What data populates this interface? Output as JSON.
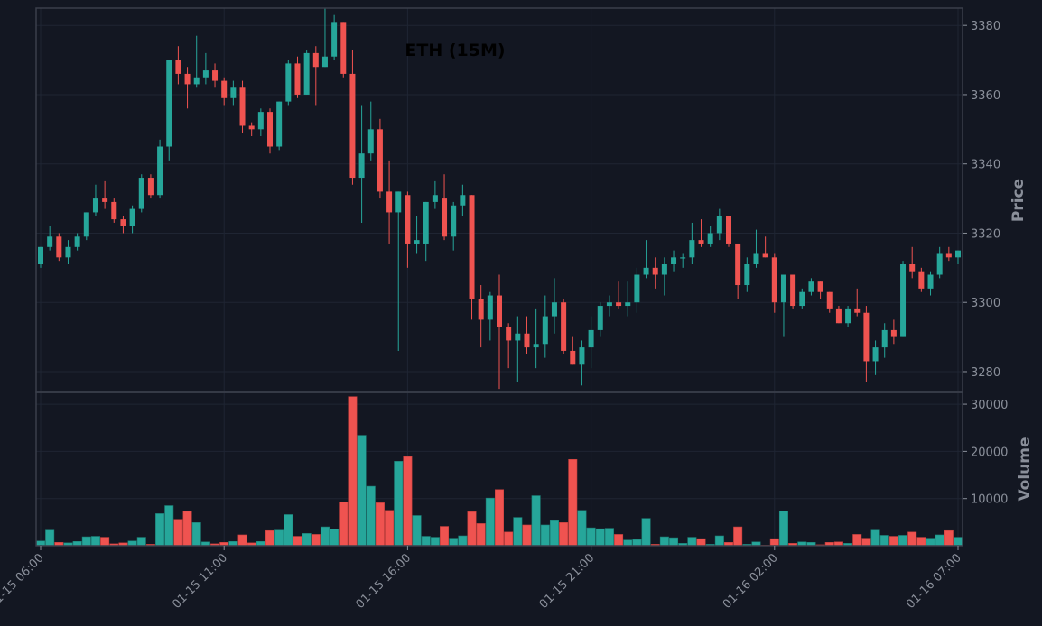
{
  "chart_data": {
    "type": "candlestick",
    "title": "ETH (15M)",
    "price_axis": {
      "label": "Price",
      "ticks": [
        3280,
        3300,
        3320,
        3340,
        3360,
        3380
      ],
      "range": [
        3274,
        3385
      ]
    },
    "volume_axis": {
      "label": "Volume",
      "ticks": [
        10000,
        20000,
        30000
      ],
      "tick_labels": [
        "10000",
        "20000",
        "30000"
      ],
      "range": [
        0,
        32500
      ]
    },
    "x_axis": {
      "ticks": [
        0,
        20,
        40,
        60,
        80,
        100
      ],
      "tick_labels": [
        "01-15 06:00",
        "01-15 11:00",
        "01-15 16:00",
        "01-15 21:00",
        "01-16 02:00",
        "01-16 07:00"
      ]
    },
    "grid": true,
    "colors": {
      "background": "#131722",
      "up": "#26a69a",
      "down": "#ef5350",
      "grid": "#1f2533",
      "border": "#3a3f4b"
    },
    "candles": [
      [
        3311,
        3316,
        3310,
        3316
      ],
      [
        3316,
        3322,
        3315,
        3319
      ],
      [
        3319,
        3320,
        3312,
        3313
      ],
      [
        3313,
        3318,
        3311,
        3316
      ],
      [
        3316,
        3320,
        3315,
        3319
      ],
      [
        3319,
        3326,
        3318,
        3326
      ],
      [
        3326,
        3334,
        3325,
        3330
      ],
      [
        3330,
        3335,
        3327,
        3329
      ],
      [
        3329,
        3330,
        3323,
        3324
      ],
      [
        3324,
        3325,
        3320,
        3322
      ],
      [
        3322,
        3328,
        3320,
        3327
      ],
      [
        3327,
        3337,
        3326,
        3336
      ],
      [
        3336,
        3337,
        3330,
        3331
      ],
      [
        3331,
        3347,
        3330,
        3345
      ],
      [
        3345,
        3370,
        3341,
        3370
      ],
      [
        3370,
        3374,
        3363,
        3366
      ],
      [
        3366,
        3368,
        3356,
        3363
      ],
      [
        3363,
        3377,
        3362,
        3365
      ],
      [
        3365,
        3372,
        3363,
        3367
      ],
      [
        3367,
        3369,
        3362,
        3364
      ],
      [
        3364,
        3365,
        3357,
        3359
      ],
      [
        3359,
        3364,
        3357,
        3362
      ],
      [
        3362,
        3364,
        3349,
        3351
      ],
      [
        3351,
        3352,
        3348,
        3350
      ],
      [
        3350,
        3356,
        3348,
        3355
      ],
      [
        3355,
        3356,
        3343,
        3345
      ],
      [
        3345,
        3358,
        3344,
        3358
      ],
      [
        3358,
        3370,
        3357,
        3369
      ],
      [
        3369,
        3371,
        3359,
        3360
      ],
      [
        3360,
        3373,
        3360,
        3372
      ],
      [
        3372,
        3374,
        3357,
        3368
      ],
      [
        3368,
        3385,
        3368,
        3371
      ],
      [
        3371,
        3383,
        3370,
        3381
      ],
      [
        3381,
        3381,
        3365,
        3366
      ],
      [
        3366,
        3373,
        3334,
        3336
      ],
      [
        3336,
        3357,
        3323,
        3343
      ],
      [
        3343,
        3358,
        3341,
        3350
      ],
      [
        3350,
        3353,
        3330,
        3332
      ],
      [
        3332,
        3341,
        3317,
        3326
      ],
      [
        3326,
        3332,
        3286,
        3332
      ],
      [
        3331,
        3332,
        3310,
        3317
      ],
      [
        3317,
        3325,
        3314,
        3318
      ],
      [
        3317,
        3329,
        3312,
        3329
      ],
      [
        3329,
        3335,
        3327,
        3331
      ],
      [
        3330,
        3337,
        3318,
        3319
      ],
      [
        3319,
        3329,
        3315,
        3328
      ],
      [
        3328,
        3334,
        3325,
        3331
      ],
      [
        3331,
        3331,
        3295,
        3301
      ],
      [
        3301,
        3305,
        3287,
        3295
      ],
      [
        3295,
        3303,
        3289,
        3302
      ],
      [
        3302,
        3308,
        3275,
        3293
      ],
      [
        3293,
        3294,
        3281,
        3289
      ],
      [
        3289,
        3296,
        3277,
        3291
      ],
      [
        3291,
        3296,
        3285,
        3287
      ],
      [
        3287,
        3298,
        3281,
        3288
      ],
      [
        3288,
        3302,
        3284,
        3296
      ],
      [
        3296,
        3307,
        3291,
        3300
      ],
      [
        3300,
        3301,
        3285,
        3286
      ],
      [
        3286,
        3290,
        3282,
        3282
      ],
      [
        3282,
        3289,
        3276,
        3287
      ],
      [
        3287,
        3296,
        3281,
        3292
      ],
      [
        3292,
        3300,
        3290,
        3299
      ],
      [
        3299,
        3302,
        3296,
        3300
      ],
      [
        3300,
        3306,
        3298,
        3299
      ],
      [
        3299,
        3306,
        3296,
        3300
      ],
      [
        3300,
        3310,
        3297,
        3308
      ],
      [
        3308,
        3318,
        3307,
        3310
      ],
      [
        3310,
        3313,
        3304,
        3308
      ],
      [
        3308,
        3313,
        3302,
        3311
      ],
      [
        3311,
        3315,
        3309,
        3313
      ],
      [
        3313,
        3314,
        3310,
        3313
      ],
      [
        3313,
        3323,
        3311,
        3318
      ],
      [
        3318,
        3324,
        3316,
        3317
      ],
      [
        3317,
        3322,
        3316,
        3320
      ],
      [
        3320,
        3327,
        3318,
        3325
      ],
      [
        3325,
        3325,
        3316,
        3317
      ],
      [
        3317,
        3317,
        3301,
        3305
      ],
      [
        3305,
        3313,
        3303,
        3311
      ],
      [
        3311,
        3321,
        3310,
        3314
      ],
      [
        3314,
        3319,
        3313,
        3313
      ],
      [
        3313,
        3314,
        3297,
        3300
      ],
      [
        3300,
        3308,
        3290,
        3308
      ],
      [
        3308,
        3308,
        3298,
        3299
      ],
      [
        3299,
        3304,
        3298,
        3303
      ],
      [
        3303,
        3307,
        3302,
        3306
      ],
      [
        3306,
        3306,
        3301,
        3303
      ],
      [
        3303,
        3303,
        3297,
        3298
      ],
      [
        3298,
        3299,
        3294,
        3294
      ],
      [
        3294,
        3299,
        3293,
        3298
      ],
      [
        3298,
        3304,
        3296,
        3297
      ],
      [
        3297,
        3299,
        3277,
        3283
      ],
      [
        3283,
        3289,
        3279,
        3287
      ],
      [
        3287,
        3294,
        3284,
        3292
      ],
      [
        3292,
        3295,
        3288,
        3290
      ],
      [
        3290,
        3312,
        3290,
        3311
      ],
      [
        3311,
        3316,
        3307,
        3309
      ],
      [
        3309,
        3310,
        3303,
        3304
      ],
      [
        3304,
        3309,
        3302,
        3308
      ],
      [
        3308,
        3316,
        3307,
        3314
      ],
      [
        3314,
        3316,
        3312,
        3313
      ],
      [
        3313,
        3315,
        3311,
        3315
      ]
    ],
    "volume": [
      1000,
      3300,
      700,
      600,
      900,
      1900,
      2000,
      1800,
      400,
      600,
      1000,
      1800,
      300,
      6800,
      8500,
      5600,
      7300,
      4900,
      800,
      400,
      700,
      900,
      2300,
      600,
      900,
      3200,
      3300,
      6600,
      2000,
      2600,
      2400,
      4000,
      3500,
      9300,
      31600,
      23400,
      12600,
      9100,
      7500,
      17900,
      18900,
      6400,
      2000,
      1800,
      4100,
      1600,
      2100,
      7200,
      4700,
      10100,
      11900,
      2900,
      6000,
      4400,
      10600,
      4400,
      5300,
      4900,
      18300,
      7500,
      3800,
      3600,
      3700,
      2400,
      1200,
      1300,
      5800,
      300,
      1900,
      1700,
      500,
      1800,
      1500,
      300,
      2100,
      700,
      4000,
      300,
      800,
      100,
      1500,
      7400,
      500,
      800,
      700,
      200,
      700,
      800,
      500,
      2400,
      1600,
      3300,
      2200,
      2000,
      2200,
      2900,
      1800,
      1600,
      2300,
      3200,
      1800
    ]
  }
}
